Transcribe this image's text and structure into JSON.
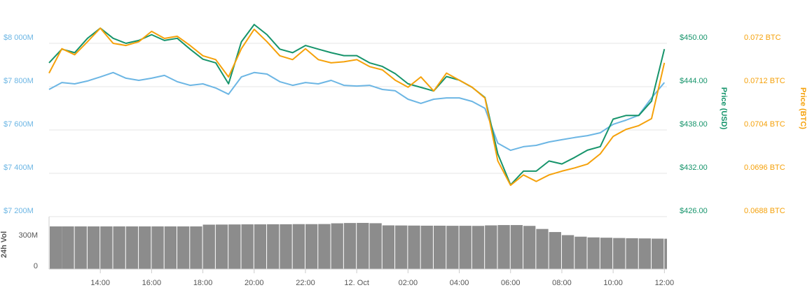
{
  "chart_data": [
    {
      "type": "line",
      "x": [
        12,
        12.5,
        13,
        13.5,
        14,
        14.5,
        15,
        15.5,
        16,
        16.5,
        17,
        17.5,
        18,
        18.5,
        19,
        19.5,
        20,
        20.5,
        21,
        21.5,
        22,
        22.5,
        23,
        23.5,
        24,
        24.5,
        25,
        25.5,
        26,
        26.5,
        27,
        27.5,
        28,
        28.5,
        29,
        29.5,
        30,
        30.5,
        31,
        31.5,
        32,
        32.5,
        33,
        33.5,
        34,
        34.5,
        35,
        35.5,
        36
      ],
      "xlim": [
        12,
        36.1
      ],
      "ylim": [
        7200,
        8100
      ],
      "yticks": [
        {
          "value": 7200,
          "label": "$7 200M"
        },
        {
          "value": 7400,
          "label": "$7 400M"
        },
        {
          "value": 7600,
          "label": "$7 600M"
        },
        {
          "value": 7800,
          "label": "$7 800M"
        },
        {
          "value": 8000,
          "label": "$8 000M"
        }
      ],
      "y2lim": [
        426,
        453
      ],
      "y2ticks": [
        {
          "value": 426,
          "label": "$426.00"
        },
        {
          "value": 432,
          "label": "$432.00"
        },
        {
          "value": 438,
          "label": "$438.00"
        },
        {
          "value": 444,
          "label": "$444.00"
        },
        {
          "value": 450,
          "label": "$450.00"
        }
      ],
      "y2_label": "Price (USD)",
      "y3lim": [
        0.0688,
        0.0724
      ],
      "y3ticks": [
        {
          "value": 0.0688,
          "label": "0.0688 BTC"
        },
        {
          "value": 0.0696,
          "label": "0.0696 BTC"
        },
        {
          "value": 0.0704,
          "label": "0.0704 BTC"
        },
        {
          "value": 0.0712,
          "label": "0.0712 BTC"
        },
        {
          "value": 0.072,
          "label": "0.072 BTC"
        }
      ],
      "y3_label": "Price (BTC)",
      "grid": true,
      "series": [
        {
          "color": "#6cb6e4",
          "axis": "y",
          "values": [
            7787,
            7819,
            7813,
            7826,
            7845,
            7865,
            7839,
            7829,
            7839,
            7852,
            7823,
            7806,
            7813,
            7794,
            7765,
            7845,
            7865,
            7858,
            7823,
            7806,
            7819,
            7813,
            7829,
            7806,
            7803,
            7806,
            7787,
            7781,
            7742,
            7723,
            7742,
            7748,
            7748,
            7732,
            7700,
            7539,
            7506,
            7523,
            7529,
            7545,
            7555,
            7565,
            7574,
            7587,
            7626,
            7645,
            7668,
            7748,
            7819
          ]
        },
        {
          "color": "#16946b",
          "axis": "y2",
          "values": [
            447.3,
            449.2,
            448.7,
            450.7,
            452.1,
            450.7,
            450.0,
            450.4,
            451.2,
            450.4,
            450.7,
            449.2,
            447.8,
            447.3,
            444.4,
            450.2,
            452.6,
            451.2,
            449.2,
            448.7,
            449.7,
            449.2,
            448.7,
            448.3,
            448.3,
            447.3,
            446.8,
            445.8,
            444.4,
            443.9,
            443.4,
            445.4,
            444.9,
            443.9,
            442.5,
            434.7,
            430.4,
            432.3,
            432.3,
            433.7,
            433.3,
            434.2,
            435.2,
            435.7,
            439.5,
            440.0,
            440.0,
            442.0,
            449.2
          ]
        },
        {
          "color": "#f5a10a",
          "axis": "y3",
          "values": [
            0.07145,
            0.0719,
            0.07179,
            0.07203,
            0.07228,
            0.072,
            0.07196,
            0.07203,
            0.07222,
            0.07209,
            0.07213,
            0.07196,
            0.07177,
            0.0717,
            0.07138,
            0.0719,
            0.07226,
            0.07203,
            0.07177,
            0.0717,
            0.0719,
            0.0717,
            0.07164,
            0.07166,
            0.0717,
            0.07157,
            0.07151,
            0.07132,
            0.07119,
            0.07138,
            0.07112,
            0.07145,
            0.07132,
            0.07119,
            0.07099,
            0.06983,
            0.06938,
            0.06957,
            0.06945,
            0.06957,
            0.06964,
            0.0697,
            0.06977,
            0.06996,
            0.07028,
            0.07041,
            0.07048,
            0.07061,
            0.07164
          ]
        }
      ]
    },
    {
      "type": "bar",
      "y_label": "24h Vol",
      "x": [
        12,
        12.5,
        13,
        13.5,
        14,
        14.5,
        15,
        15.5,
        16,
        16.5,
        17,
        17.5,
        18,
        18.5,
        19,
        19.5,
        20,
        20.5,
        21,
        21.5,
        22,
        22.5,
        23,
        23.5,
        24,
        24.5,
        25,
        25.5,
        26,
        26.5,
        27,
        27.5,
        28,
        28.5,
        29,
        29.5,
        30,
        30.5,
        31,
        31.5,
        32,
        32.5,
        33,
        33.5,
        34,
        34.5,
        35,
        35.5,
        36
      ],
      "xlim": [
        12,
        36.1
      ],
      "xticks": [
        {
          "value": 14,
          "label": "14:00"
        },
        {
          "value": 16,
          "label": "16:00"
        },
        {
          "value": 18,
          "label": "18:00"
        },
        {
          "value": 20,
          "label": "20:00"
        },
        {
          "value": 22,
          "label": "22:00"
        },
        {
          "value": 24,
          "label": "12. Oct"
        },
        {
          "value": 26,
          "label": "02:00"
        },
        {
          "value": 28,
          "label": "04:00"
        },
        {
          "value": 30,
          "label": "06:00"
        },
        {
          "value": 32,
          "label": "08:00"
        },
        {
          "value": 34,
          "label": "10:00"
        },
        {
          "value": 36,
          "label": "12:00"
        }
      ],
      "ylim": [
        0,
        510
      ],
      "yticks": [
        0,
        {
          "value": 300,
          "label": "300M"
        }
      ],
      "color": "#8c8c8c",
      "values": [
        415,
        415,
        415,
        415,
        415,
        415,
        415,
        415,
        415,
        415,
        415,
        415,
        432,
        433,
        434,
        435,
        435,
        436,
        436,
        437,
        437,
        438,
        445,
        448,
        449,
        446,
        425,
        424,
        423,
        422,
        422,
        421,
        421,
        420,
        425,
        428,
        428,
        420,
        390,
        360,
        330,
        315,
        308,
        305,
        302,
        300,
        298,
        296,
        295
      ]
    }
  ]
}
